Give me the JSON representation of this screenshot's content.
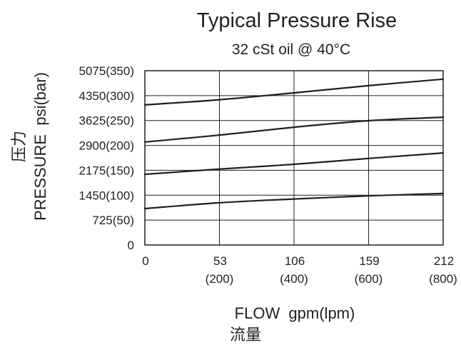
{
  "chart_data": {
    "type": "line",
    "title": "Typical Pressure Rise",
    "subtitle": "32 cSt oil @ 40°C",
    "ylabel": "PRESSURE  psi(bar)",
    "ylabel_cn": "压力",
    "xlabel": "FLOW  gpm(lpm)",
    "xlabel_cn": "流量",
    "xlim": [
      0,
      212
    ],
    "ylim": [
      0,
      5075
    ],
    "grid": true,
    "x_ticks": [
      {
        "value": 0,
        "label": "0",
        "sublabel": ""
      },
      {
        "value": 53,
        "label": "53",
        "sublabel": "(200)"
      },
      {
        "value": 106,
        "label": "106",
        "sublabel": "(400)"
      },
      {
        "value": 159,
        "label": "159",
        "sublabel": "(600)"
      },
      {
        "value": 212,
        "label": "212",
        "sublabel": "(800)"
      }
    ],
    "y_ticks": [
      {
        "value": 0,
        "label": "0"
      },
      {
        "value": 725,
        "label": "725(50)"
      },
      {
        "value": 1450,
        "label": "1450(100)"
      },
      {
        "value": 2175,
        "label": "2175(150)"
      },
      {
        "value": 2900,
        "label": "2900(200)"
      },
      {
        "value": 3625,
        "label": "3625(250)"
      },
      {
        "value": 4350,
        "label": "4350(300)"
      },
      {
        "value": 5075,
        "label": "5075(350)"
      }
    ],
    "series": [
      {
        "x": [
          0,
          53,
          106,
          159,
          212
        ],
        "values": [
          1060,
          1230,
          1340,
          1430,
          1500
        ]
      },
      {
        "x": [
          0,
          53,
          106,
          159,
          212
        ],
        "values": [
          2060,
          2210,
          2350,
          2520,
          2680
        ]
      },
      {
        "x": [
          0,
          53,
          106,
          159,
          212
        ],
        "values": [
          3000,
          3200,
          3430,
          3620,
          3720
        ]
      },
      {
        "x": [
          0,
          53,
          106,
          159,
          212
        ],
        "values": [
          4080,
          4230,
          4430,
          4640,
          4830
        ]
      }
    ],
    "colors": {
      "text": "#231f20",
      "line": "#231f20",
      "grid": "#231f20"
    }
  }
}
